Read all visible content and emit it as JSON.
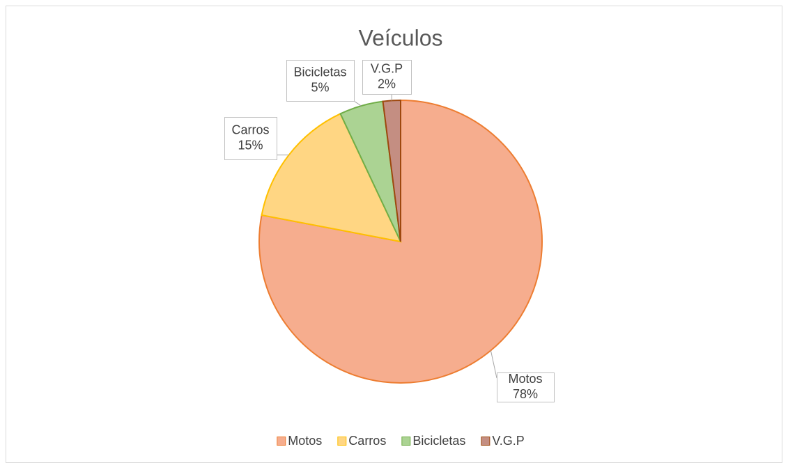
{
  "chart_data": {
    "type": "pie",
    "title": "Veículos",
    "categories": [
      "Motos",
      "Carros",
      "Bicicletas",
      "V.G.P"
    ],
    "values": [
      78,
      15,
      5,
      2
    ],
    "value_labels": [
      "78%",
      "15%",
      "5%",
      "2%"
    ],
    "colors": [
      "#f6ad8e",
      "#ffd683",
      "#abd393",
      "#c48e82"
    ],
    "edge_colors": [
      "#ed7d31",
      "#ffc000",
      "#70ad47",
      "#9e480e"
    ],
    "legend": "bottom"
  }
}
